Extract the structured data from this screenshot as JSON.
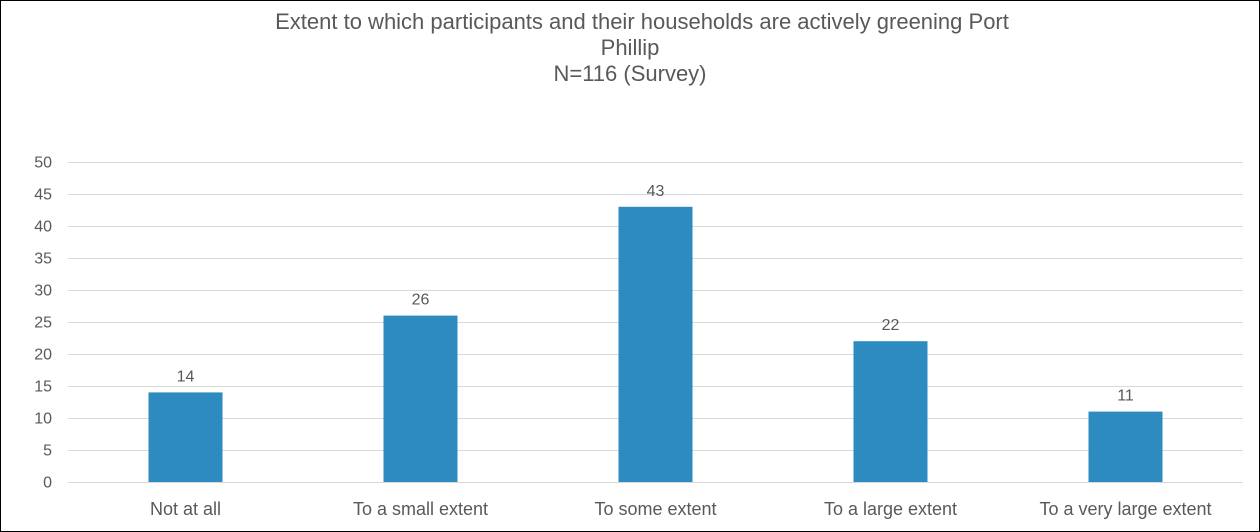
{
  "chart_data": {
    "type": "bar",
    "title_lines": [
      "Extent to which participants and their households are actively greening Port",
      "Phillip",
      "N=116 (Survey)"
    ],
    "categories": [
      "Not at all",
      "To a small extent",
      "To some extent",
      "To a large extent",
      "To a very large extent"
    ],
    "values": [
      14,
      26,
      43,
      22,
      11
    ],
    "data_labels": [
      "14",
      "26",
      "43",
      "22",
      "11"
    ],
    "y_ticks": [
      "0",
      "5",
      "10",
      "15",
      "20",
      "25",
      "30",
      "35",
      "40",
      "45",
      "50"
    ],
    "ylim": [
      0,
      50
    ],
    "xlabel": "",
    "ylabel": "",
    "grid": true,
    "legend": "none",
    "colors": {
      "bar": "#2E8BC0",
      "grid": "#D9D9D9",
      "text": "#595959"
    }
  }
}
